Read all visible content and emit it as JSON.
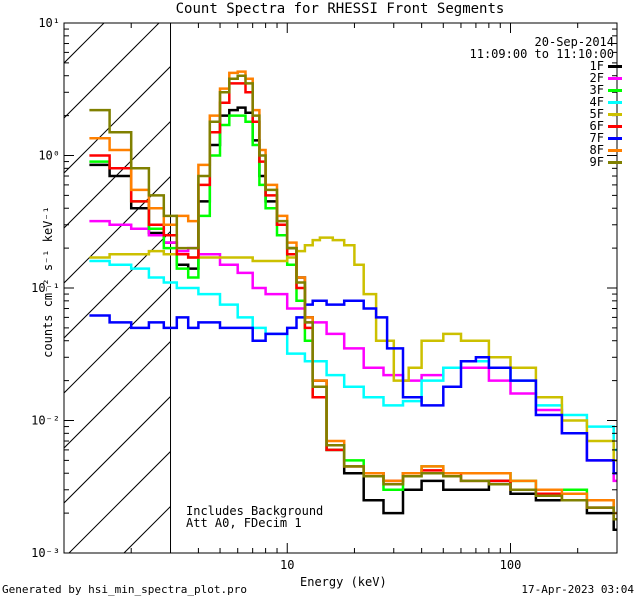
{
  "chart_data": {
    "type": "line",
    "title": "Count Spectra for RHESSI Front Segments",
    "xlabel": "Energy (keV)",
    "ylabel": "counts cm⁻² s⁻¹ keV⁻¹",
    "x_scale": "log",
    "y_scale": "log",
    "xlim": [
      1.0,
      300.0
    ],
    "ylim": [
      0.001,
      10.0
    ],
    "x_ticks": [
      {
        "v": 10,
        "label": "10"
      },
      {
        "v": 100,
        "label": "100"
      }
    ],
    "y_ticks": [
      {
        "v": 0.001,
        "label": "10⁻³"
      },
      {
        "v": 0.01,
        "label": "10⁻²"
      },
      {
        "v": 0.1,
        "label": "10⁻¹"
      },
      {
        "v": 1,
        "label": "10⁰"
      },
      {
        "v": 10,
        "label": "10¹"
      }
    ],
    "date_range": [
      "20-Sep-2014",
      "11:09:00 to 11:10:00"
    ],
    "annotations": [
      "Includes Background",
      "Att A0, FDecim 1"
    ],
    "hatched_region_max_energy": 3.0,
    "legend_position": "top-right",
    "footer_left": "Generated by hsi_min_spectra_plot.pro",
    "footer_right": "17-Apr-2023 03:04",
    "series": [
      {
        "name": "1F",
        "color": "#000000",
        "x": [
          1.3,
          1.6,
          2.0,
          2.4,
          2.8,
          3.2,
          3.6,
          4.0,
          4.5,
          5.0,
          5.5,
          6.0,
          6.5,
          7.0,
          7.5,
          8.0,
          9.0,
          10.0,
          11.0,
          12.0,
          13.0,
          15.0,
          18.0,
          22.0,
          27.0,
          33.0,
          40.0,
          50.0,
          60.0,
          80.0,
          100.0,
          130.0,
          170.0,
          220.0,
          290.0
        ],
        "y": [
          0.85,
          0.7,
          0.4,
          0.26,
          0.22,
          0.15,
          0.14,
          0.45,
          1.2,
          2.0,
          2.2,
          2.3,
          2.1,
          1.3,
          0.7,
          0.45,
          0.3,
          0.2,
          0.12,
          0.06,
          0.02,
          0.006,
          0.004,
          0.0025,
          0.002,
          0.003,
          0.0035,
          0.003,
          0.003,
          0.0035,
          0.0028,
          0.0025,
          0.0025,
          0.002,
          0.0015
        ]
      },
      {
        "name": "2F",
        "color": "#ff00ff",
        "x": [
          1.3,
          1.6,
          2.0,
          2.4,
          2.8,
          3.2,
          3.6,
          4.0,
          5.0,
          6.0,
          7.0,
          8.0,
          10.0,
          12.0,
          15.0,
          18.0,
          22.0,
          27.0,
          33.0,
          40.0,
          50.0,
          60.0,
          80.0,
          100.0,
          130.0,
          170.0,
          220.0,
          290.0
        ],
        "y": [
          0.32,
          0.3,
          0.28,
          0.25,
          0.22,
          0.19,
          0.2,
          0.18,
          0.15,
          0.13,
          0.1,
          0.09,
          0.07,
          0.055,
          0.045,
          0.035,
          0.025,
          0.022,
          0.02,
          0.022,
          0.025,
          0.025,
          0.02,
          0.016,
          0.012,
          0.008,
          0.005,
          0.0035
        ]
      },
      {
        "name": "3F",
        "color": "#00ff00",
        "x": [
          1.3,
          1.6,
          2.0,
          2.4,
          2.8,
          3.2,
          3.6,
          4.0,
          4.5,
          5.0,
          5.5,
          6.0,
          6.5,
          7.0,
          7.5,
          8.0,
          9.0,
          10.0,
          11.0,
          12.0,
          13.0,
          15.0,
          18.0,
          22.0,
          27.0,
          33.0,
          40.0,
          50.0,
          60.0,
          80.0,
          100.0,
          130.0,
          170.0,
          220.0,
          290.0
        ],
        "y": [
          0.9,
          0.8,
          0.45,
          0.28,
          0.2,
          0.14,
          0.12,
          0.35,
          1.0,
          1.7,
          2.0,
          2.0,
          1.8,
          1.2,
          0.6,
          0.4,
          0.25,
          0.15,
          0.08,
          0.04,
          0.015,
          0.006,
          0.005,
          0.004,
          0.003,
          0.004,
          0.0045,
          0.004,
          0.004,
          0.004,
          0.0035,
          0.003,
          0.003,
          0.0025,
          0.002
        ]
      },
      {
        "name": "4F",
        "color": "#00ffff",
        "x": [
          1.3,
          1.6,
          2.0,
          2.4,
          2.8,
          3.2,
          3.6,
          4.0,
          5.0,
          6.0,
          7.0,
          8.0,
          10.0,
          12.0,
          15.0,
          18.0,
          22.0,
          27.0,
          33.0,
          40.0,
          50.0,
          60.0,
          80.0,
          100.0,
          130.0,
          170.0,
          220.0,
          290.0
        ],
        "y": [
          0.16,
          0.15,
          0.14,
          0.12,
          0.11,
          0.1,
          0.1,
          0.09,
          0.075,
          0.06,
          0.05,
          0.045,
          0.032,
          0.028,
          0.022,
          0.018,
          0.015,
          0.013,
          0.014,
          0.02,
          0.025,
          0.028,
          0.025,
          0.02,
          0.013,
          0.011,
          0.009,
          0.006
        ]
      },
      {
        "name": "5F",
        "color": "#ccc000",
        "x": [
          1.3,
          1.6,
          2.0,
          2.4,
          2.8,
          3.2,
          3.6,
          4.0,
          5.0,
          6.0,
          7.0,
          8.0,
          9.0,
          10.0,
          11.0,
          12.0,
          13.0,
          14.0,
          15.0,
          16.0,
          18.0,
          20.0,
          22.0,
          25.0,
          30.0,
          35.0,
          40.0,
          50.0,
          60.0,
          80.0,
          100.0,
          130.0,
          170.0,
          220.0,
          290.0
        ],
        "y": [
          0.17,
          0.18,
          0.18,
          0.19,
          0.18,
          0.18,
          0.17,
          0.17,
          0.17,
          0.17,
          0.16,
          0.16,
          0.16,
          0.17,
          0.19,
          0.21,
          0.23,
          0.24,
          0.24,
          0.23,
          0.21,
          0.15,
          0.09,
          0.04,
          0.02,
          0.025,
          0.04,
          0.045,
          0.04,
          0.03,
          0.025,
          0.015,
          0.01,
          0.007,
          0.005
        ]
      },
      {
        "name": "6F",
        "color": "#ff0000",
        "x": [
          1.3,
          1.6,
          2.0,
          2.4,
          2.8,
          3.2,
          3.6,
          4.0,
          4.5,
          5.0,
          5.5,
          6.0,
          6.5,
          7.0,
          7.5,
          8.0,
          9.0,
          10.0,
          11.0,
          12.0,
          13.0,
          15.0,
          18.0,
          22.0,
          27.0,
          33.0,
          40.0,
          50.0,
          60.0,
          80.0,
          100.0,
          130.0,
          170.0,
          220.0,
          290.0
        ],
        "y": [
          1.0,
          0.8,
          0.45,
          0.3,
          0.25,
          0.18,
          0.17,
          0.6,
          1.5,
          2.5,
          3.5,
          3.5,
          3.0,
          1.8,
          0.9,
          0.5,
          0.3,
          0.18,
          0.1,
          0.05,
          0.015,
          0.006,
          0.0045,
          0.004,
          0.0035,
          0.004,
          0.0042,
          0.004,
          0.0035,
          0.0035,
          0.003,
          0.0028,
          0.0025,
          0.0022,
          0.0018
        ]
      },
      {
        "name": "7F",
        "color": "#0000ff",
        "x": [
          1.3,
          1.6,
          2.0,
          2.4,
          2.8,
          3.2,
          3.6,
          4.0,
          5.0,
          6.0,
          7.0,
          8.0,
          10.0,
          11.0,
          12.0,
          13.0,
          15.0,
          18.0,
          22.0,
          25.0,
          28.0,
          33.0,
          40.0,
          50.0,
          60.0,
          70.0,
          80.0,
          100.0,
          130.0,
          170.0,
          220.0,
          290.0
        ],
        "y": [
          0.062,
          0.055,
          0.05,
          0.055,
          0.05,
          0.06,
          0.05,
          0.055,
          0.05,
          0.05,
          0.04,
          0.045,
          0.05,
          0.06,
          0.075,
          0.08,
          0.075,
          0.08,
          0.07,
          0.06,
          0.035,
          0.015,
          0.013,
          0.018,
          0.028,
          0.03,
          0.025,
          0.02,
          0.011,
          0.008,
          0.005,
          0.004
        ]
      },
      {
        "name": "8F",
        "color": "#ff8000",
        "x": [
          1.3,
          1.6,
          2.0,
          2.4,
          2.8,
          3.2,
          3.6,
          4.0,
          4.5,
          5.0,
          5.5,
          6.0,
          6.5,
          7.0,
          7.5,
          8.0,
          9.0,
          10.0,
          11.0,
          12.0,
          13.0,
          15.0,
          18.0,
          22.0,
          27.0,
          33.0,
          40.0,
          50.0,
          60.0,
          80.0,
          100.0,
          130.0,
          170.0,
          220.0,
          290.0
        ],
        "y": [
          1.35,
          1.1,
          0.55,
          0.4,
          0.3,
          0.35,
          0.32,
          0.85,
          2.0,
          3.2,
          4.2,
          4.3,
          3.8,
          2.2,
          1.1,
          0.6,
          0.35,
          0.22,
          0.12,
          0.06,
          0.02,
          0.007,
          0.0045,
          0.004,
          0.0035,
          0.004,
          0.0045,
          0.004,
          0.004,
          0.004,
          0.0035,
          0.003,
          0.0028,
          0.0025,
          0.002
        ]
      },
      {
        "name": "9F",
        "color": "#808000",
        "x": [
          1.3,
          1.6,
          2.0,
          2.4,
          2.8,
          3.2,
          3.6,
          4.0,
          4.5,
          5.0,
          5.5,
          6.0,
          6.5,
          7.0,
          7.5,
          8.0,
          9.0,
          10.0,
          11.0,
          12.0,
          13.0,
          15.0,
          18.0,
          22.0,
          27.0,
          33.0,
          40.0,
          50.0,
          60.0,
          80.0,
          100.0,
          130.0,
          170.0,
          220.0,
          290.0
        ],
        "y": [
          2.2,
          1.5,
          0.8,
          0.5,
          0.35,
          0.2,
          0.2,
          0.7,
          1.8,
          3.0,
          3.8,
          4.0,
          3.5,
          2.0,
          1.0,
          0.55,
          0.32,
          0.2,
          0.11,
          0.055,
          0.018,
          0.0065,
          0.0045,
          0.0038,
          0.0033,
          0.0038,
          0.004,
          0.0038,
          0.0035,
          0.0033,
          0.003,
          0.0027,
          0.0025,
          0.0022,
          0.0018
        ]
      }
    ]
  }
}
